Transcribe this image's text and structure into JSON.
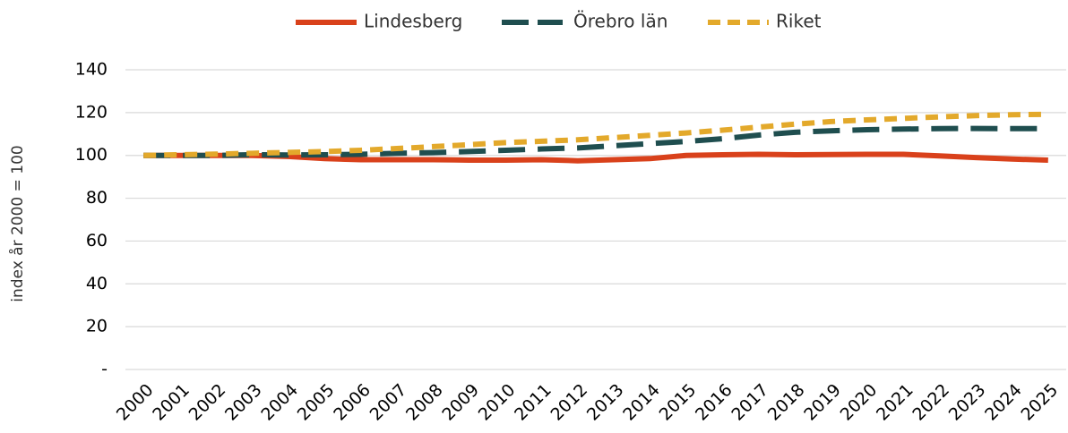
{
  "chart_data": {
    "type": "line",
    "y_axis_label": "index år 2000 = 100",
    "categories": [
      "2000",
      "2001",
      "2002",
      "2003",
      "2004",
      "2005",
      "2006",
      "2007",
      "2008",
      "2009",
      "2010",
      "2011",
      "2012",
      "2013",
      "2014",
      "2015",
      "2016",
      "2017",
      "2018",
      "2019",
      "2020",
      "2021",
      "2022",
      "2023",
      "2024",
      "2025"
    ],
    "series": [
      {
        "name": "Lindesberg",
        "color": "#d9411b",
        "dash": "solid",
        "values": [
          100,
          100,
          100,
          100,
          99.5,
          98.5,
          98,
          98,
          98,
          97.8,
          97.8,
          98,
          97.5,
          98,
          98.5,
          100,
          100.3,
          100.5,
          100.3,
          100.4,
          100.5,
          100.5,
          99.8,
          99,
          98.3,
          97.8
        ]
      },
      {
        "name": "Örebro län",
        "color": "#1f4e4f",
        "dash": "long",
        "values": [
          100,
          100,
          100,
          100.3,
          100.2,
          100.3,
          100.5,
          101,
          101.3,
          101.8,
          102.4,
          103,
          103.5,
          104.5,
          105.5,
          106.5,
          107.8,
          109.5,
          110.8,
          111.5,
          112,
          112.3,
          112.5,
          112.6,
          112.5,
          112.5
        ]
      },
      {
        "name": "Riket",
        "color": "#e3a92b",
        "dash": "short",
        "values": [
          100,
          100.3,
          100.6,
          101,
          101.4,
          101.8,
          102.4,
          103.2,
          104.1,
          105,
          106,
          106.6,
          107.3,
          108.3,
          109.4,
          110.5,
          111.8,
          113.2,
          114.6,
          115.8,
          116.6,
          117.3,
          118,
          118.6,
          119,
          119.2
        ]
      }
    ],
    "ylim": [
      0,
      140
    ],
    "yticks": [
      {
        "value": 0,
        "label": "-"
      },
      20,
      40,
      60,
      80,
      100,
      120,
      140
    ],
    "grid": true,
    "legend": "top"
  }
}
